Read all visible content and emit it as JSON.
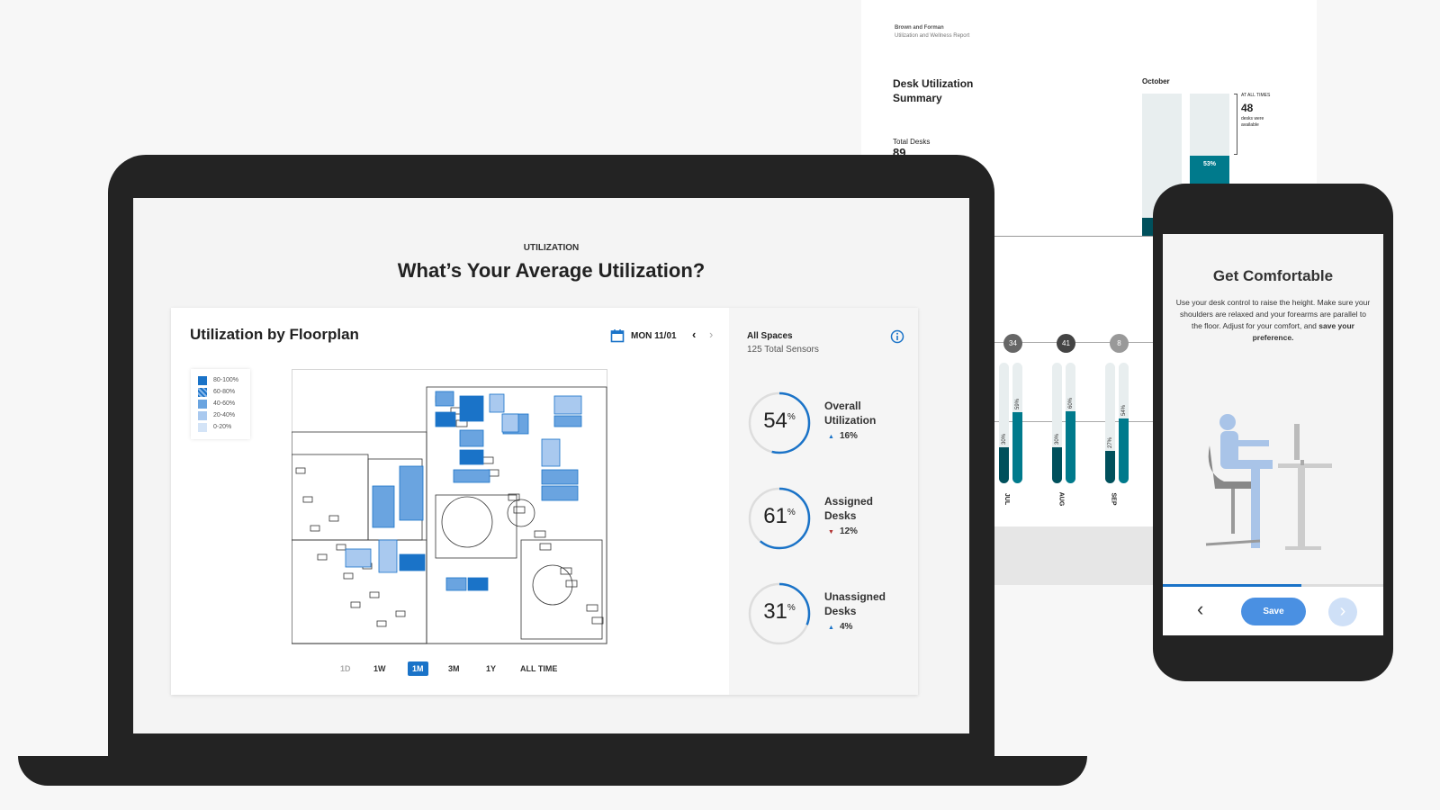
{
  "report": {
    "company": "Brown and Forman",
    "subtitle": "Utilization and Wellness Report",
    "title_line1": "Desk Utilization",
    "title_line2": "Summary",
    "total_label": "Total Desks",
    "total_value": "89",
    "month": "October",
    "bar_pct": "53%",
    "bar_value": 53,
    "at_all_times": "AT ALL TIMES",
    "available_count": "48",
    "available_line1": "desks were",
    "available_line2": "available",
    "months": [
      {
        "label": "JUL",
        "badge": "34",
        "low": 30,
        "high": 59,
        "low_label": "30%",
        "high_label": "59%"
      },
      {
        "label": "AUG",
        "badge": "41",
        "low": 30,
        "high": 60,
        "low_label": "30%",
        "high_label": "60%"
      },
      {
        "label": "SEP",
        "badge": "8",
        "low": 27,
        "high": 54,
        "low_label": "27%",
        "high_label": "54%"
      }
    ]
  },
  "dashboard": {
    "eyebrow": "UTILIZATION",
    "title": "What’s Your Average Utilization?",
    "card_title": "Utilization by Floorplan",
    "date": "MON 11/01",
    "legend": [
      "80-100%",
      "60-80%",
      "40-60%",
      "20-40%",
      "0-20%"
    ],
    "timeframes": [
      "1D",
      "1W",
      "1M",
      "3M",
      "1Y",
      "ALL TIME"
    ],
    "active_timeframe": "1M",
    "panel": {
      "title": "All Spaces",
      "subtitle": "125 Total Sensors",
      "stats": [
        {
          "value": "54",
          "pct": 54,
          "label1": "Overall",
          "label2": "Utilization",
          "delta": "16%",
          "dir": "up"
        },
        {
          "value": "61",
          "pct": 61,
          "label1": "Assigned",
          "label2": "Desks",
          "delta": "12%",
          "dir": "down"
        },
        {
          "value": "31",
          "pct": 31,
          "label1": "Unassigned",
          "label2": "Desks",
          "delta": "4%",
          "dir": "up"
        }
      ]
    }
  },
  "colors": {
    "accent": "#1a73c8",
    "teal": "#007a8c",
    "dark_teal": "#00505c",
    "down": "#b03030"
  },
  "phone": {
    "title": "Get Comfortable",
    "body": "Use your desk control to raise the height. Make sure your shoulders are relaxed and your forearms are parallel to the floor. Adjust for your comfort, and ",
    "body_bold": "save your preference.",
    "save": "Save",
    "progress": 0.63
  }
}
